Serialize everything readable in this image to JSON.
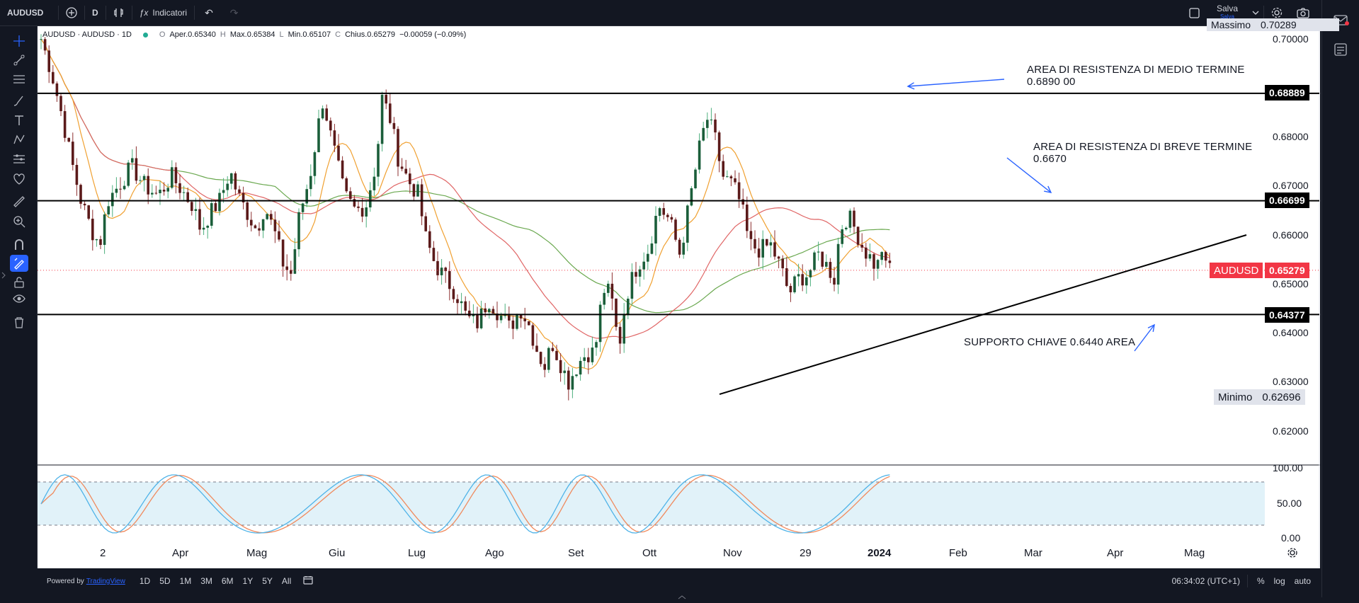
{
  "topbar": {
    "symbol": "AUDUSD",
    "interval": "D",
    "indicators_label": "Indicatori",
    "save_label": "Salva",
    "save_sub": "Salva"
  },
  "legend": {
    "symbol_text": "AUDUSD · AUDUSD · 1D",
    "open_label": "O",
    "open_value": "Aper.0.65340",
    "high_label": "H",
    "high_value": "Max.0.65384",
    "low_label": "L",
    "low_value": "Min.0.65107",
    "close_label": "C",
    "close_value": "Chius.0.65279",
    "change": "−0.00059 (−0.09%)"
  },
  "price_axis": {
    "ticks": [
      "0.70000",
      "0.68000",
      "0.67000",
      "0.66000",
      "0.65000",
      "0.64000",
      "0.63000",
      "0.62000"
    ],
    "top_cut_label": "Massimo",
    "top_cut_value": "0.70289",
    "hline_1": "0.68889",
    "hline_2": "0.66699",
    "hline_3": "0.64377",
    "current_symbol": "AUDUSD",
    "current_value": "0.65279",
    "min_label": "Minimo",
    "min_value": "0.62696"
  },
  "osc_axis": {
    "ticks": [
      "100.00",
      "50.00",
      "0.00"
    ]
  },
  "time_axis": [
    "2",
    "Apr",
    "Mag",
    "Giu",
    "Lug",
    "Ago",
    "Set",
    "Ott",
    "Nov",
    "29",
    "2024",
    "Feb",
    "Mar",
    "Apr",
    "Mag"
  ],
  "annotations": {
    "res_medium_1": "AREA DI RESISTENZA DI MEDIO TERMINE",
    "res_medium_2": "0.6890 00",
    "res_short_1": "AREA DI RESISTENZA DI BREVE TERMINE",
    "res_short_2": "0.6670",
    "support": "SUPPORTO CHIAVE 0.6440 AREA"
  },
  "bottombar": {
    "powered_by": "Powered by",
    "brand": "TradingView",
    "ranges": [
      "1D",
      "5D",
      "1M",
      "3M",
      "6M",
      "1Y",
      "5Y",
      "All"
    ],
    "clock": "06:34:02 (UTC+1)",
    "percent": "%",
    "log": "log",
    "auto": "auto"
  },
  "colors": {
    "candle_up": "#1b5e3a",
    "candle_down": "#5b1a1a",
    "ma_fast": "#f0a030",
    "ma_mid": "#e06666",
    "ma_slow": "#6aa84f",
    "stoch_k": "#4fb3e8",
    "stoch_d": "#f08a5d",
    "current_price": "#f23645"
  }
}
